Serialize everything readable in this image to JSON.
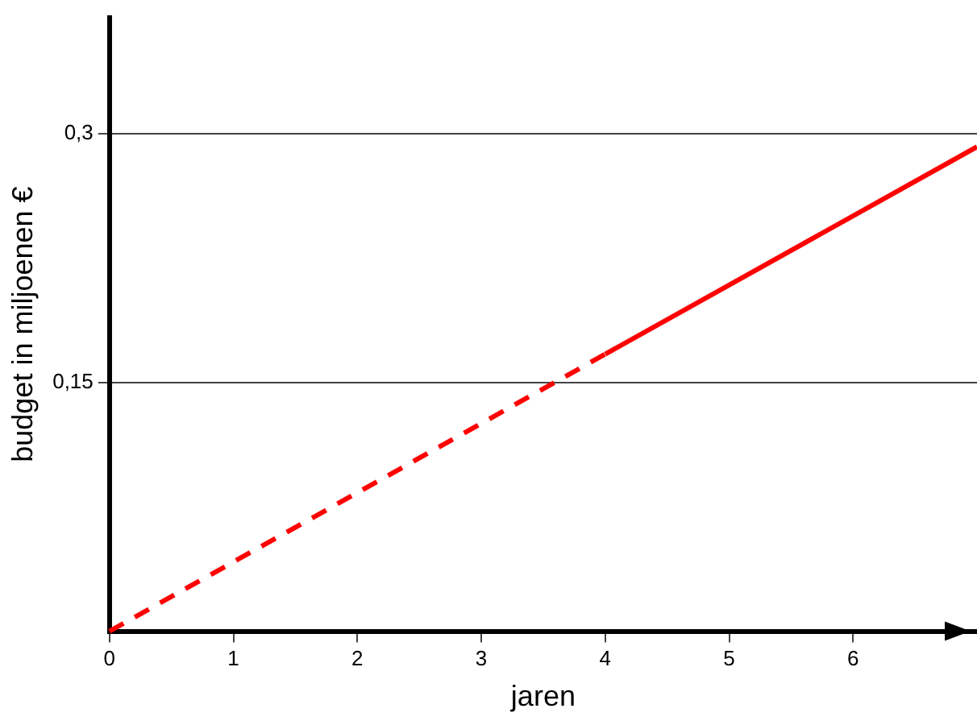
{
  "chart_data": {
    "type": "line",
    "xlabel": "jaren",
    "ylabel": "budget in miljoenen €",
    "xlim": [
      0,
      7
    ],
    "ylim": [
      0,
      0.37
    ],
    "xticks": [
      0,
      1,
      2,
      3,
      4,
      5,
      6
    ],
    "yticks": [
      {
        "value": 0.15,
        "label": "0,15"
      },
      {
        "value": 0.3,
        "label": "0,3"
      }
    ],
    "grid": "y",
    "marker": "none",
    "series": [
      {
        "color": "#ff0000",
        "line_style": "dashed",
        "x": [
          0,
          4
        ],
        "values": [
          0,
          0.167
        ]
      },
      {
        "color": "#ff0000",
        "line_style": "solid",
        "x": [
          4,
          7
        ],
        "values": [
          0.167,
          0.292
        ]
      }
    ]
  }
}
